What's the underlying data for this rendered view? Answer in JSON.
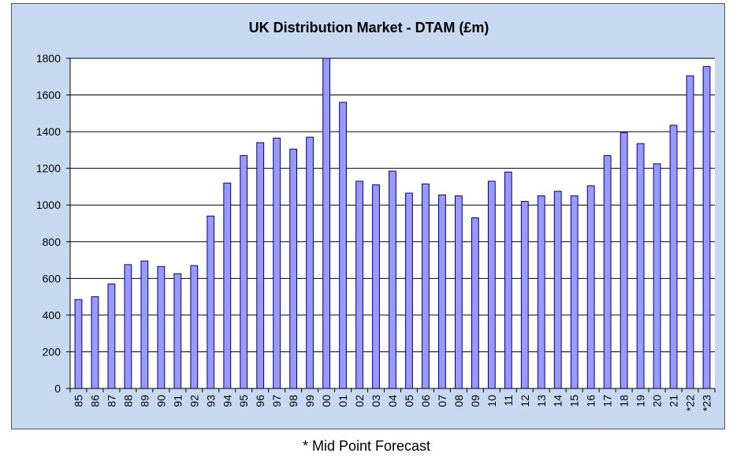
{
  "chart_data": {
    "type": "bar",
    "title": "UK Distribution Market - DTAM (£m)",
    "xlabel": "",
    "ylabel": "",
    "ylim": [
      0,
      1800
    ],
    "yticks": [
      0,
      200,
      400,
      600,
      800,
      1000,
      1200,
      1400,
      1600,
      1800
    ],
    "grid": true,
    "categories": [
      "85",
      "86",
      "87",
      "88",
      "89",
      "90",
      "91",
      "92",
      "93",
      "94",
      "95",
      "96",
      "97",
      "98",
      "99",
      "00",
      "01",
      "02",
      "03",
      "04",
      "05",
      "06",
      "07",
      "08",
      "09",
      "10",
      "11",
      "12",
      "13",
      "14",
      "15",
      "16",
      "17",
      "18",
      "19",
      "20",
      "21",
      "*22",
      "*23"
    ],
    "values": [
      485,
      500,
      570,
      675,
      695,
      665,
      625,
      670,
      940,
      1120,
      1270,
      1340,
      1365,
      1305,
      1370,
      1800,
      1560,
      1130,
      1110,
      1185,
      1065,
      1115,
      1055,
      1050,
      930,
      1130,
      1180,
      1020,
      1050,
      1075,
      1050,
      1105,
      1270,
      1395,
      1335,
      1225,
      1435,
      1705,
      1755
    ],
    "colors": {
      "bar_fill": "#9999ff",
      "bar_stroke": "#000080",
      "plot_bg": "#ffffff",
      "frame_bg": "#c6d9f0"
    }
  },
  "footnote": "* Mid Point Forecast"
}
